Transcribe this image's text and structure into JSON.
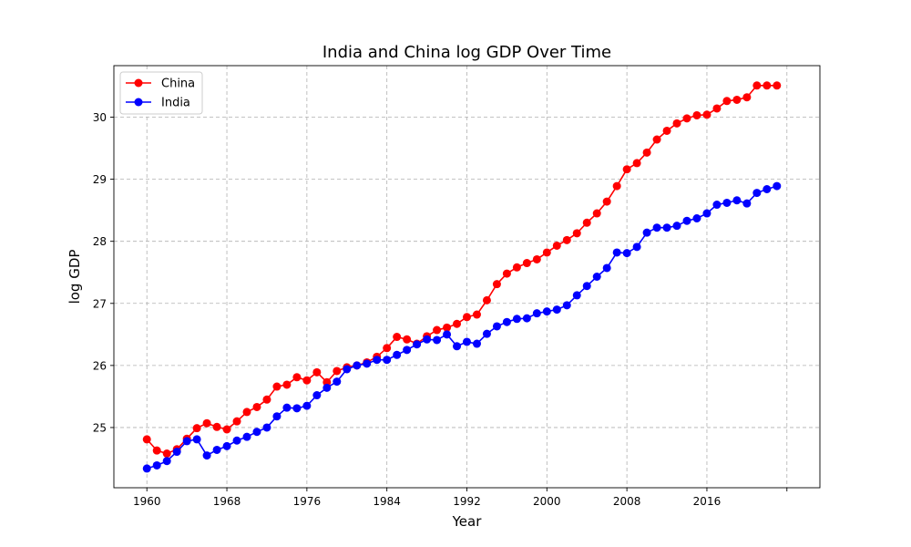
{
  "chart_data": {
    "type": "line",
    "title": "India and China log GDP Over Time",
    "xlabel": "Year",
    "ylabel": "log GDP",
    "xlim": [
      1956.7,
      2027.3
    ],
    "ylim": [
      24.03,
      30.83
    ],
    "xticks": [
      1960,
      1968,
      1976,
      1984,
      1992,
      2000,
      2008,
      2016,
      2024
    ],
    "xtick_labels": [
      "1960",
      "1968",
      "1976",
      "1984",
      "1992",
      "2000",
      "2008",
      "2016",
      ""
    ],
    "yticks": [
      25,
      26,
      27,
      28,
      29,
      30
    ],
    "ytick_labels": [
      "25",
      "26",
      "27",
      "28",
      "29",
      "30"
    ],
    "grid": true,
    "legend_position": "top-left",
    "x": [
      1960,
      1961,
      1962,
      1963,
      1964,
      1965,
      1966,
      1967,
      1968,
      1969,
      1970,
      1971,
      1972,
      1973,
      1974,
      1975,
      1976,
      1977,
      1978,
      1979,
      1980,
      1981,
      1982,
      1983,
      1984,
      1985,
      1986,
      1987,
      1988,
      1989,
      1990,
      1991,
      1992,
      1993,
      1994,
      1995,
      1996,
      1997,
      1998,
      1999,
      2000,
      2001,
      2002,
      2003,
      2004,
      2005,
      2006,
      2007,
      2008,
      2009,
      2010,
      2011,
      2012,
      2013,
      2014,
      2015,
      2016,
      2017,
      2018,
      2019,
      2020,
      2021,
      2022,
      2023
    ],
    "series": [
      {
        "name": "China",
        "color": "#ff0000",
        "values": [
          24.81,
          24.63,
          24.58,
          24.65,
          24.82,
          24.99,
          25.07,
          25.01,
          24.97,
          25.1,
          25.25,
          25.33,
          25.45,
          25.66,
          25.69,
          25.81,
          25.76,
          25.89,
          25.73,
          25.91,
          25.97,
          26.0,
          26.05,
          26.14,
          26.28,
          26.46,
          26.42,
          26.35,
          26.47,
          26.57,
          26.61,
          26.67,
          26.78,
          26.82,
          27.05,
          27.31,
          27.48,
          27.58,
          27.65,
          27.71,
          27.82,
          27.93,
          28.02,
          28.13,
          28.3,
          28.45,
          28.64,
          28.89,
          29.16,
          29.26,
          29.43,
          29.64,
          29.78,
          29.9,
          29.98,
          30.03,
          30.04,
          30.14,
          30.26,
          30.28,
          30.32,
          30.51,
          30.51,
          30.51
        ]
      },
      {
        "name": "India",
        "color": "#0000ff",
        "values": [
          24.34,
          24.39,
          24.46,
          24.61,
          24.78,
          24.81,
          24.55,
          24.64,
          24.7,
          24.79,
          24.85,
          24.93,
          25.0,
          25.18,
          25.32,
          25.31,
          25.35,
          25.52,
          25.64,
          25.74,
          25.94,
          26.0,
          26.03,
          26.09,
          26.09,
          26.17,
          26.25,
          26.34,
          26.42,
          26.41,
          26.5,
          26.31,
          26.38,
          26.35,
          26.51,
          26.63,
          26.7,
          26.75,
          26.76,
          26.84,
          26.87,
          26.9,
          26.97,
          27.13,
          27.28,
          27.43,
          27.57,
          27.82,
          27.81,
          27.91,
          28.14,
          28.22,
          28.22,
          28.25,
          28.33,
          28.37,
          28.45,
          28.59,
          28.62,
          28.66,
          28.61,
          28.78,
          28.84,
          28.89
        ]
      }
    ]
  }
}
